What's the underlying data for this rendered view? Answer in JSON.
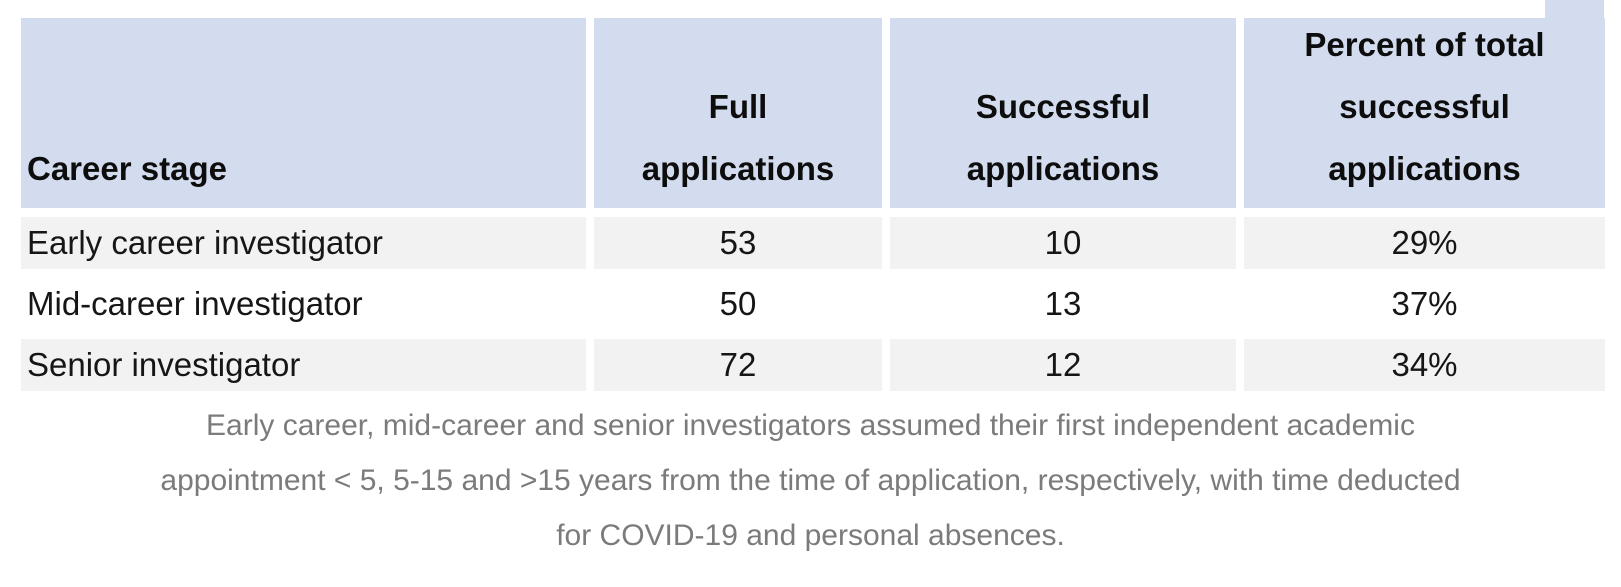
{
  "colors": {
    "header_bg": "#d3dcee",
    "row_stripe_bg": "#f2f2f2",
    "row_plain_bg": "#ffffff",
    "header_text": "#0d0d0d",
    "body_text": "#161616",
    "caption_text": "#7b7b7b"
  },
  "table": {
    "headers": [
      {
        "lines": [
          "Career stage"
        ]
      },
      {
        "lines": [
          "Full",
          "applications"
        ]
      },
      {
        "lines": [
          "Successful",
          "applications"
        ]
      },
      {
        "lines": [
          "Percent of total",
          "successful",
          "applications"
        ]
      }
    ],
    "rows": [
      [
        "Early career investigator",
        "53",
        "10",
        "29%"
      ],
      [
        "Mid-career investigator",
        "50",
        "13",
        "37%"
      ],
      [
        "Senior investigator",
        "72",
        "12",
        "34%"
      ]
    ]
  },
  "caption_lines": [
    "Early career, mid-career and senior investigators assumed their first independent academic",
    "appointment < 5, 5-15 and >15 years from the time of application, respectively, with time deducted",
    "for COVID-19 and personal absences."
  ],
  "chart_data": {
    "type": "table",
    "title": "",
    "columns": [
      "Career stage",
      "Full applications",
      "Successful applications",
      "Percent of total successful applications"
    ],
    "rows": [
      [
        "Early career investigator",
        53,
        10,
        "29%"
      ],
      [
        "Mid-career investigator",
        50,
        13,
        "37%"
      ],
      [
        "Senior investigator",
        72,
        12,
        "34%"
      ]
    ],
    "caption": "Early career, mid-career and senior investigators assumed their first independent academic appointment < 5, 5-15 and >15 years from the time of application, respectively, with time deducted for COVID-19 and personal absences."
  }
}
